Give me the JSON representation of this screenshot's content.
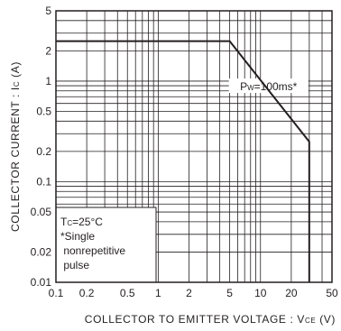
{
  "chart_data": {
    "type": "line",
    "xscale": "log",
    "yscale": "log",
    "xlim": [
      0.1,
      50
    ],
    "ylim": [
      0.01,
      5
    ],
    "grid": true,
    "xlabel": {
      "main": "COLLECTOR  TO  EMITTER  VOLTAGE : V",
      "sub": "CE",
      "unit": " (V)"
    },
    "ylabel": {
      "main": "COLLECTOR  CURRENT : I",
      "sub": "C",
      "unit": " (A)"
    },
    "x_ticks": [
      {
        "v": 0.1,
        "label": "0.1"
      },
      {
        "v": 0.2,
        "label": "0.2"
      },
      {
        "v": 0.5,
        "label": "0.5"
      },
      {
        "v": 1,
        "label": "1"
      },
      {
        "v": 2,
        "label": "2"
      },
      {
        "v": 5,
        "label": "5"
      },
      {
        "v": 10,
        "label": "10"
      },
      {
        "v": 20,
        "label": "20"
      },
      {
        "v": 50,
        "label": "50"
      }
    ],
    "y_ticks": [
      {
        "v": 0.01,
        "label": "0.01"
      },
      {
        "v": 0.02,
        "label": "0.02"
      },
      {
        "v": 0.05,
        "label": "0.05"
      },
      {
        "v": 0.1,
        "label": "0.1"
      },
      {
        "v": 0.2,
        "label": "0.2"
      },
      {
        "v": 0.5,
        "label": "0.5"
      },
      {
        "v": 1,
        "label": "1"
      },
      {
        "v": 2,
        "label": "2"
      },
      {
        "v": 5,
        "label": "5"
      }
    ],
    "series": [
      {
        "name": "PW=100ms*",
        "name_parts": {
          "main": "P",
          "sub": "W",
          "rest": "=100ms*"
        },
        "points": [
          [
            0.1,
            2.5
          ],
          [
            5,
            2.5
          ],
          [
            30,
            0.25
          ],
          [
            30,
            0.01
          ]
        ],
        "label_anchor": [
          12,
          0.9
        ]
      }
    ],
    "annotation": {
      "lines": [
        {
          "main": "T",
          "sub": "C",
          "rest": "=25°C"
        },
        {
          "main": "*Single",
          "sub": "",
          "rest": ""
        },
        {
          "main": " nonrepetitive",
          "sub": "",
          "rest": ""
        },
        {
          "main": " pulse",
          "sub": "",
          "rest": ""
        }
      ],
      "corner": "bottom-left"
    },
    "colors": {
      "line": "#231f20",
      "grid": "#231f20",
      "background": "#ffffff"
    }
  }
}
